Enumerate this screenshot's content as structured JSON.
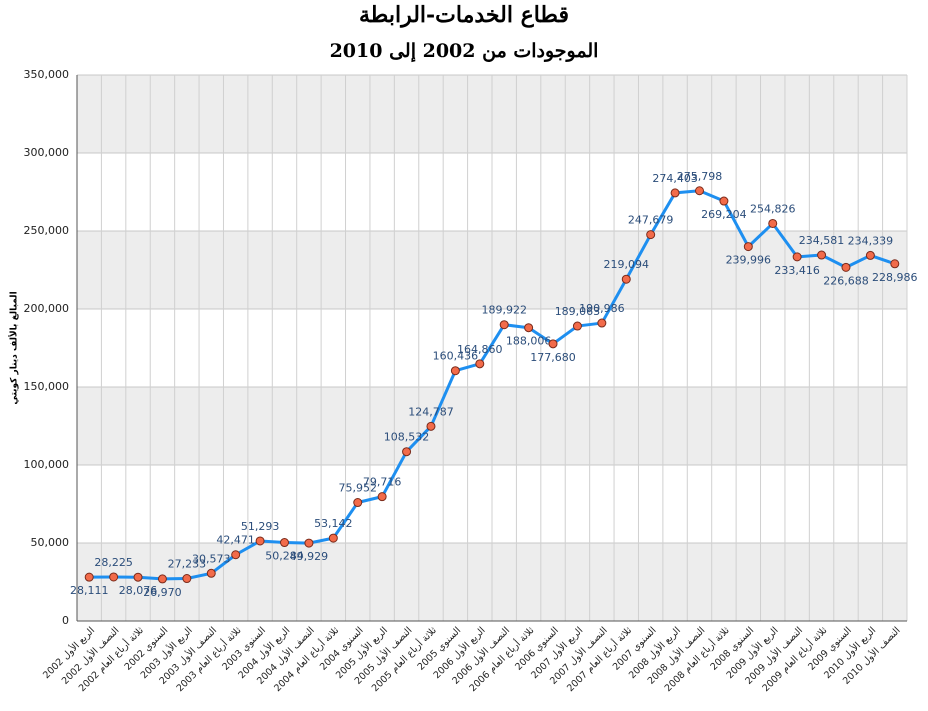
{
  "chart_data": {
    "type": "line",
    "title": "قطاع الخدمات-الرابطة",
    "subtitle": "الموجودات من 2002 إلى 2010",
    "y_label": "المبالغ بالألف دينار كويتي",
    "categories": [
      "الربع الأول 2002",
      "النصف الأول 2002",
      "ثلاثة أرباع العام 2002",
      "السنوي 2002",
      "الربع الأول 2003",
      "النصف الأول 2003",
      "ثلاثة أرباع العام 2003",
      "السنوي 2003",
      "الربع الأول 2004",
      "النصف الأول 2004",
      "ثلاثة أرباع العام 2004",
      "السنوي 2004",
      "الربع الأول 2005",
      "النصف الأول 2005",
      "ثلاثة أرباع العام 2005",
      "السنوي 2005",
      "الربع الأول 2006",
      "النصف الأول 2006",
      "ثلاثة أرباع العام 2006",
      "السنوي 2006",
      "الربع الأول 2007",
      "النصف الأول 2007",
      "ثلاثة أرباع العام 2007",
      "السنوي 2007",
      "الربع الأول 2008",
      "النصف الأول 2008",
      "ثلاثة أرباع العام 2008",
      "السنوي 2008",
      "الربع الأول 2009",
      "النصف الأول 2009",
      "ثلاثة أرباع العام 2009",
      "السنوي 2009",
      "الربع الأول 2010",
      "النصف الأول 2010"
    ],
    "series": [
      {
        "name": "الموجودات",
        "color": "#1e8ff0",
        "marker_color": "#f26b4a",
        "values": [
          28111,
          28225,
          28076,
          26970,
          27233,
          30573,
          42471,
          51293,
          50284,
          49929,
          53142,
          75952,
          79716,
          108532,
          124787,
          160436,
          164860,
          189922,
          188006,
          177680,
          189063,
          190986,
          219094,
          247679,
          274403,
          275798,
          269204,
          239996,
          254826,
          233416,
          234581,
          226688,
          234339,
          228986
        ],
        "value_labels": [
          "28,111",
          "28,225",
          "28,076",
          "26,970",
          "27,233",
          "30,573",
          "42,471",
          "51,293",
          "50,284",
          "49,929",
          "53,142",
          "75,952",
          "79,716",
          "108,532",
          "124,787",
          "160,436",
          "164,860",
          "189,922",
          "188,006",
          "177,680",
          "189,063",
          "190,986",
          "219,094",
          "247,679",
          "274,403",
          "275,798",
          "269,204",
          "239,996",
          "254,826",
          "233,416",
          "234,581",
          "226,688",
          "234,339",
          "228,986"
        ]
      }
    ],
    "ylim": [
      0,
      350000
    ],
    "yticks": [
      0,
      {
        "value": 50000,
        "label": "50,000"
      },
      {
        "value": 100000,
        "label": "100,000"
      },
      {
        "value": 150000,
        "label": "150,000"
      },
      {
        "value": 200000,
        "label": "200,000"
      },
      {
        "value": 250000,
        "label": "250,000"
      },
      {
        "value": 300000,
        "label": "300,000"
      },
      {
        "value": 350000,
        "label": "350,000"
      }
    ],
    "grid": true
  }
}
